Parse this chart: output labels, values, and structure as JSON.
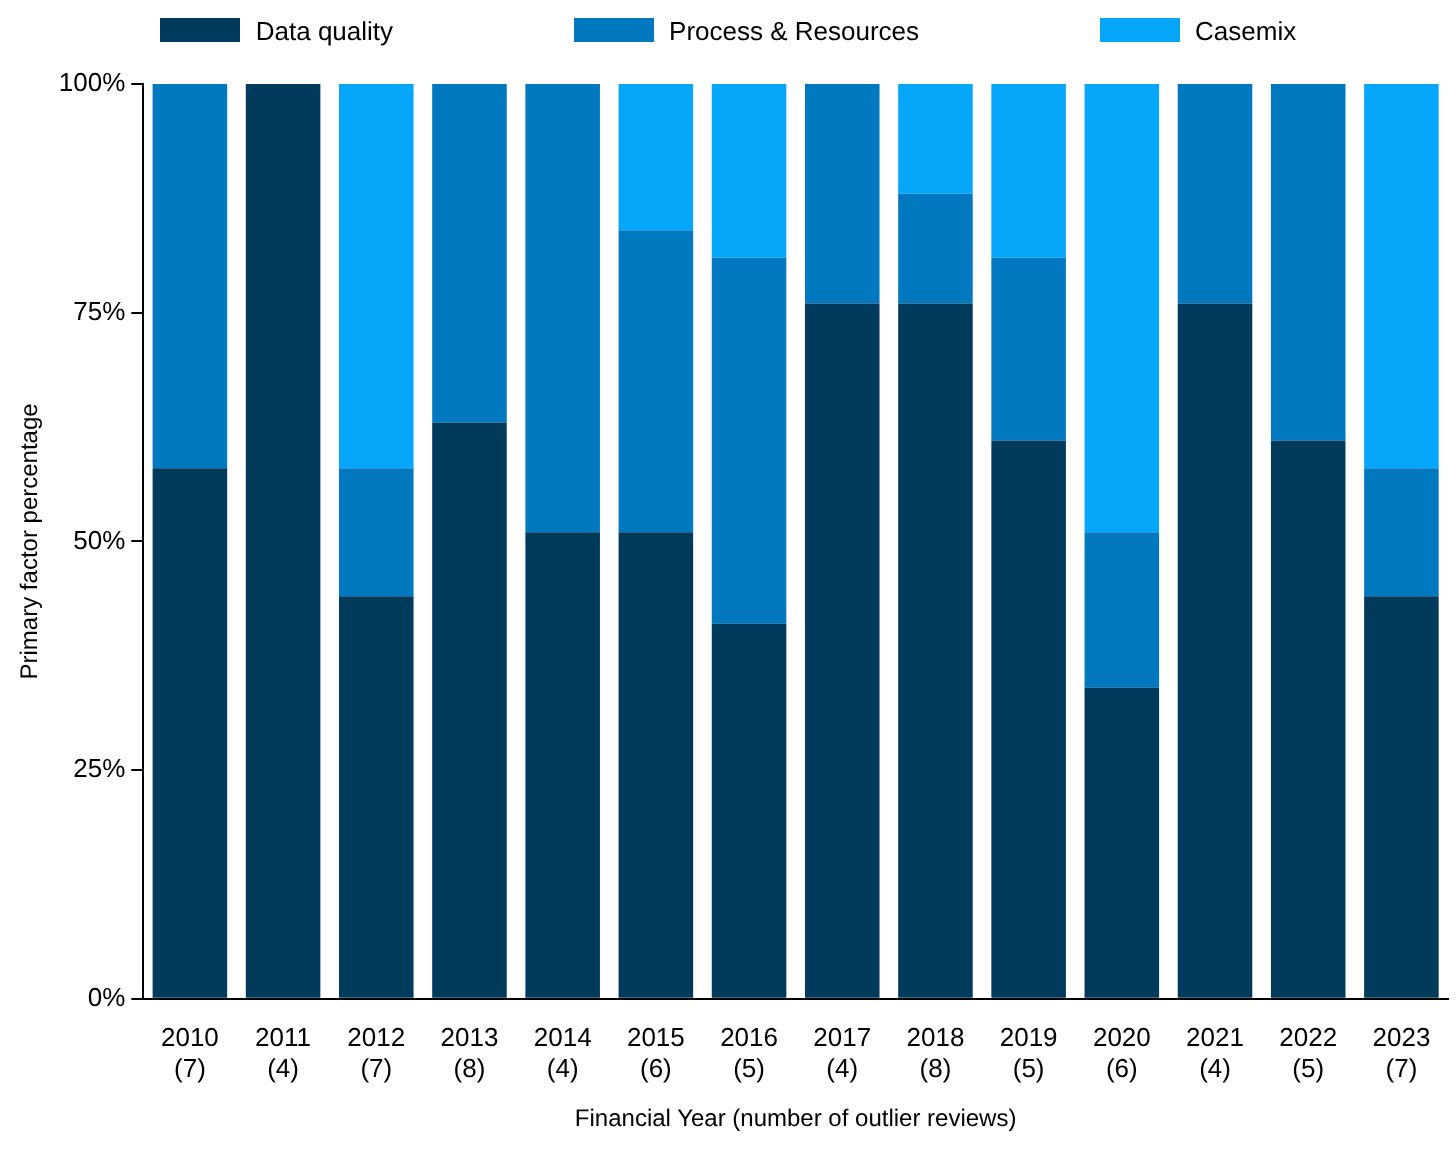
{
  "chart_data": {
    "type": "bar",
    "stacked": true,
    "xlabel": "Financial Year (number of outlier reviews)",
    "ylabel": "Primary factor percentage",
    "categories": [
      "2010\n(7)",
      "2011\n(4)",
      "2012\n(7)",
      "2013\n(8)",
      "2014\n(4)",
      "2015\n(6)",
      "2016\n(5)",
      "2017\n(4)",
      "2018\n(8)",
      "2019\n(5)",
      "2020\n(6)",
      "2021\n(4)",
      "2022\n(5)",
      "2023\n(7)"
    ],
    "series": [
      {
        "name": "Data quality",
        "color": "#023a5c",
        "values": [
          58,
          100,
          44,
          63,
          51,
          51,
          41,
          76,
          76,
          61,
          34,
          76,
          61,
          44
        ]
      },
      {
        "name": "Process & Resources",
        "color": "#0278c0",
        "values": [
          42,
          0,
          14,
          37,
          49,
          33,
          40,
          24,
          12,
          20,
          17,
          24,
          39,
          14
        ]
      },
      {
        "name": "Casemix",
        "color": "#06a6fb",
        "values": [
          0,
          0,
          42,
          0,
          0,
          16,
          19,
          0,
          12,
          19,
          49,
          0,
          0,
          42
        ]
      }
    ],
    "ylim": [
      0,
      100
    ],
    "yticks": [
      {
        "value": 0,
        "label": "0%"
      },
      {
        "value": 25,
        "label": "25%"
      },
      {
        "value": 50,
        "label": "50%"
      },
      {
        "value": 75,
        "label": "75%"
      },
      {
        "value": 100,
        "label": "100%"
      }
    ],
    "grid": false,
    "legend": "top"
  }
}
